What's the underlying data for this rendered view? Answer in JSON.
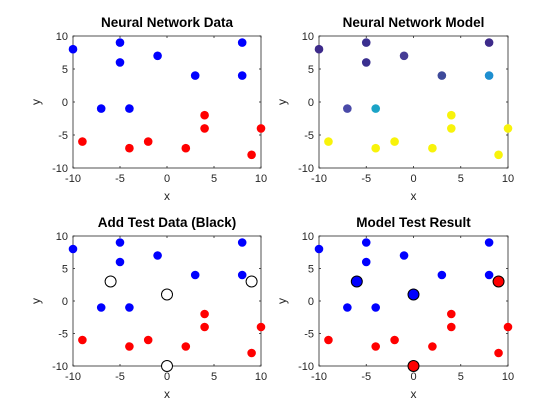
{
  "chart_data": [
    {
      "type": "scatter",
      "title": "Neural Network Data",
      "xlabel": "x",
      "ylabel": "y",
      "xlim": [
        -10,
        10
      ],
      "ylim": [
        -10,
        10
      ],
      "xticks": [
        -10,
        -5,
        0,
        5,
        10
      ],
      "yticks": [
        -10,
        -5,
        0,
        5,
        10
      ],
      "grid": false,
      "series": [
        {
          "color": "#0000ff",
          "points": [
            [
              -10,
              8
            ],
            [
              -5,
              9
            ],
            [
              -5,
              6
            ],
            [
              -1,
              7
            ],
            [
              3,
              4
            ],
            [
              8,
              9
            ],
            [
              8,
              4
            ],
            [
              -7,
              -1
            ],
            [
              -4,
              -1
            ]
          ]
        },
        {
          "color": "#ff0000",
          "points": [
            [
              -9,
              -6
            ],
            [
              -4,
              -7
            ],
            [
              -2,
              -6
            ],
            [
              2,
              -7
            ],
            [
              4,
              -2
            ],
            [
              4,
              -4
            ],
            [
              9,
              -8
            ],
            [
              10,
              -4
            ]
          ]
        }
      ]
    },
    {
      "type": "scatter",
      "title": "Neural Network Model",
      "xlabel": "x",
      "ylabel": "y",
      "xlim": [
        -10,
        10
      ],
      "ylim": [
        -10,
        10
      ],
      "xticks": [
        -10,
        -5,
        0,
        5,
        10
      ],
      "yticks": [
        -10,
        -5,
        0,
        5,
        10
      ],
      "grid": false,
      "series": [
        {
          "points": [
            {
              "x": -10,
              "y": 8,
              "color": "#3d2a8a"
            },
            {
              "x": -5,
              "y": 9,
              "color": "#3a2f8f"
            },
            {
              "x": -5,
              "y": 6,
              "color": "#3a2f8f"
            },
            {
              "x": -1,
              "y": 7,
              "color": "#463c95"
            },
            {
              "x": 3,
              "y": 4,
              "color": "#3e4a9a"
            },
            {
              "x": 8,
              "y": 9,
              "color": "#3d2a8a"
            },
            {
              "x": 8,
              "y": 4,
              "color": "#1e8fd0"
            },
            {
              "x": -7,
              "y": -1,
              "color": "#4a4aa8"
            },
            {
              "x": -4,
              "y": -1,
              "color": "#1ba3c6"
            },
            {
              "x": -9,
              "y": -6,
              "color": "#f8f30a"
            },
            {
              "x": -4,
              "y": -7,
              "color": "#f8f30a"
            },
            {
              "x": -2,
              "y": -6,
              "color": "#f8f30a"
            },
            {
              "x": 2,
              "y": -7,
              "color": "#f8f30a"
            },
            {
              "x": 4,
              "y": -2,
              "color": "#f8f30a"
            },
            {
              "x": 4,
              "y": -4,
              "color": "#f8f30a"
            },
            {
              "x": 9,
              "y": -8,
              "color": "#f8f30a"
            },
            {
              "x": 10,
              "y": -4,
              "color": "#f8f30a"
            }
          ]
        }
      ]
    },
    {
      "type": "scatter",
      "title": "Add Test Data (Black)",
      "xlabel": "x",
      "ylabel": "y",
      "xlim": [
        -10,
        10
      ],
      "ylim": [
        -10,
        10
      ],
      "xticks": [
        -10,
        -5,
        0,
        5,
        10
      ],
      "yticks": [
        -10,
        -5,
        0,
        5,
        10
      ],
      "grid": false,
      "series": [
        {
          "color": "#0000ff",
          "points": [
            [
              -10,
              8
            ],
            [
              -5,
              9
            ],
            [
              -5,
              6
            ],
            [
              -1,
              7
            ],
            [
              3,
              4
            ],
            [
              8,
              9
            ],
            [
              8,
              4
            ],
            [
              -7,
              -1
            ],
            [
              -4,
              -1
            ]
          ]
        },
        {
          "color": "#ff0000",
          "points": [
            [
              -9,
              -6
            ],
            [
              -4,
              -7
            ],
            [
              -2,
              -6
            ],
            [
              2,
              -7
            ],
            [
              4,
              -2
            ],
            [
              4,
              -4
            ],
            [
              9,
              -8
            ],
            [
              10,
              -4
            ]
          ]
        },
        {
          "color": "#ffffff",
          "edgecolor": "#000000",
          "size": "large",
          "points": [
            [
              -6,
              3
            ],
            [
              0,
              1
            ],
            [
              0,
              -10
            ],
            [
              9,
              3
            ]
          ]
        }
      ]
    },
    {
      "type": "scatter",
      "title": "Model Test Result",
      "xlabel": "x",
      "ylabel": "y",
      "xlim": [
        -10,
        10
      ],
      "ylim": [
        -10,
        10
      ],
      "xticks": [
        -10,
        -5,
        0,
        5,
        10
      ],
      "yticks": [
        -10,
        -5,
        0,
        5,
        10
      ],
      "grid": false,
      "series": [
        {
          "color": "#0000ff",
          "points": [
            [
              -10,
              8
            ],
            [
              -5,
              9
            ],
            [
              -5,
              6
            ],
            [
              -1,
              7
            ],
            [
              3,
              4
            ],
            [
              8,
              9
            ],
            [
              8,
              4
            ],
            [
              -7,
              -1
            ],
            [
              -4,
              -1
            ]
          ]
        },
        {
          "color": "#ff0000",
          "points": [
            [
              -9,
              -6
            ],
            [
              -4,
              -7
            ],
            [
              -2,
              -6
            ],
            [
              2,
              -7
            ],
            [
              4,
              -2
            ],
            [
              4,
              -4
            ],
            [
              9,
              -8
            ],
            [
              10,
              -4
            ]
          ]
        },
        {
          "color": "#0000ff",
          "edgecolor": "#000000",
          "size": "large",
          "points": [
            [
              -6,
              3
            ],
            [
              0,
              1
            ]
          ]
        },
        {
          "color": "#ff0000",
          "edgecolor": "#000000",
          "size": "large",
          "points": [
            [
              0,
              -10
            ],
            [
              9,
              3
            ]
          ]
        }
      ]
    }
  ]
}
